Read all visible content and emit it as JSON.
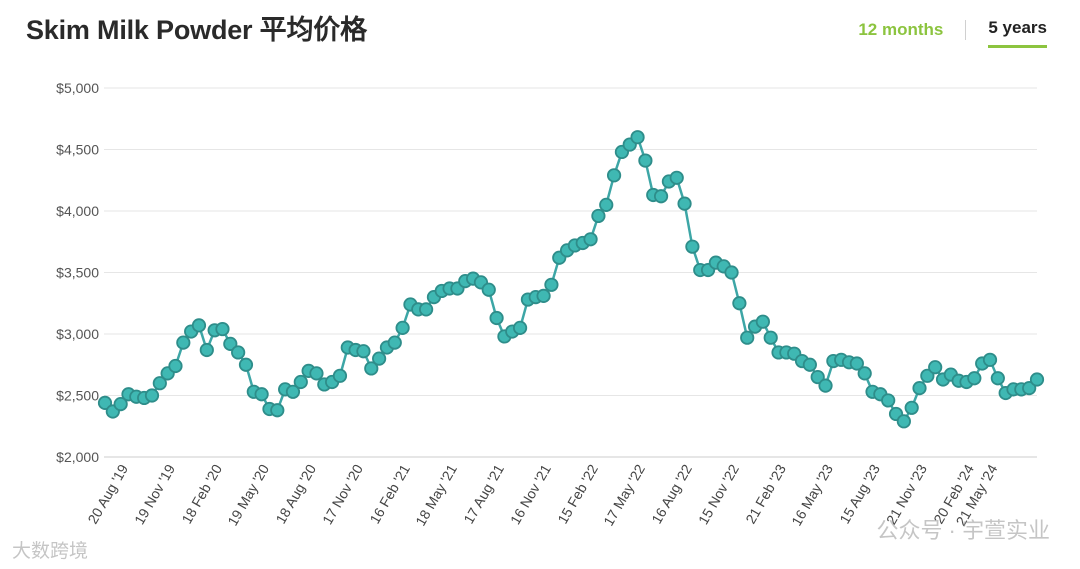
{
  "header": {
    "title": "Skim Milk Powder 平均价格",
    "tabs": [
      {
        "label": "12 months",
        "active": false
      },
      {
        "label": "5 years",
        "active": true
      }
    ]
  },
  "watermarks": {
    "left": "大数跨境",
    "right": "公众号 · 宇萱实业"
  },
  "colors": {
    "line": "#3da6a6",
    "marker": "#3fb8b3",
    "grid": "#e6e6e6",
    "accent": "#8cc43f"
  },
  "chart_data": {
    "type": "line",
    "title": "Skim Milk Powder 平均价格",
    "xlabel": "",
    "ylabel": "",
    "ylim": [
      2000,
      5000
    ],
    "yticks": [
      {
        "value": 2000,
        "label": "$2,000"
      },
      {
        "value": 2500,
        "label": "$2,500"
      },
      {
        "value": 3000,
        "label": "$3,000"
      },
      {
        "value": 3500,
        "label": "$3,500"
      },
      {
        "value": 4000,
        "label": "$4,000"
      },
      {
        "value": 4500,
        "label": "$4,500"
      },
      {
        "value": 5000,
        "label": "$5,000"
      }
    ],
    "xticks": [
      {
        "index": 3,
        "label": "20 Aug '19"
      },
      {
        "index": 9,
        "label": "19 Nov '19"
      },
      {
        "index": 15,
        "label": "18 Feb '20"
      },
      {
        "index": 21,
        "label": "19 May '20"
      },
      {
        "index": 27,
        "label": "18 Aug '20"
      },
      {
        "index": 33,
        "label": "17 Nov '20"
      },
      {
        "index": 39,
        "label": "16 Feb '21"
      },
      {
        "index": 45,
        "label": "18 May '21"
      },
      {
        "index": 51,
        "label": "17 Aug '21"
      },
      {
        "index": 57,
        "label": "16 Nov '21"
      },
      {
        "index": 63,
        "label": "15 Feb '22"
      },
      {
        "index": 69,
        "label": "17 May '22"
      },
      {
        "index": 75,
        "label": "16 Aug '22"
      },
      {
        "index": 81,
        "label": "15 Nov '22"
      },
      {
        "index": 87,
        "label": "21 Feb '23"
      },
      {
        "index": 93,
        "label": "16 May '23"
      },
      {
        "index": 99,
        "label": "15 Aug '23"
      },
      {
        "index": 105,
        "label": "21 Nov '23"
      },
      {
        "index": 111,
        "label": "20 Feb '24"
      },
      {
        "index": 114,
        "label": "21 May '24"
      }
    ],
    "grid": true,
    "legend": "none",
    "series": [
      {
        "values": [
          2440,
          2370,
          2430,
          2510,
          2490,
          2480,
          2500,
          2600,
          2680,
          2740,
          2930,
          3020,
          3070,
          2870,
          3030,
          3040,
          2920,
          2850,
          2750,
          2530,
          2510,
          2390,
          2380,
          2550,
          2530,
          2610,
          2700,
          2680,
          2590,
          2610,
          2660,
          2890,
          2870,
          2860,
          2720,
          2800,
          2890,
          2930,
          3050,
          3240,
          3200,
          3200,
          3300,
          3350,
          3370,
          3370,
          3430,
          3450,
          3420,
          3360,
          3130,
          2980,
          3020,
          3050,
          3280,
          3300,
          3310,
          3400,
          3620,
          3680,
          3720,
          3740,
          3770,
          3960,
          4050,
          4290,
          4480,
          4540,
          4600,
          4410,
          4130,
          4120,
          4240,
          4270,
          4060,
          3710,
          3520,
          3520,
          3580,
          3550,
          3500,
          3250,
          2970,
          3060,
          3100,
          2970,
          2850,
          2850,
          2840,
          2780,
          2750,
          2650,
          2580,
          2780,
          2790,
          2770,
          2760,
          2680,
          2530,
          2510,
          2460,
          2350,
          2290,
          2400,
          2560,
          2660,
          2730,
          2630,
          2670,
          2620,
          2610,
          2640,
          2760,
          2790,
          2640,
          2520,
          2550,
          2550,
          2560,
          2630
        ]
      }
    ]
  }
}
